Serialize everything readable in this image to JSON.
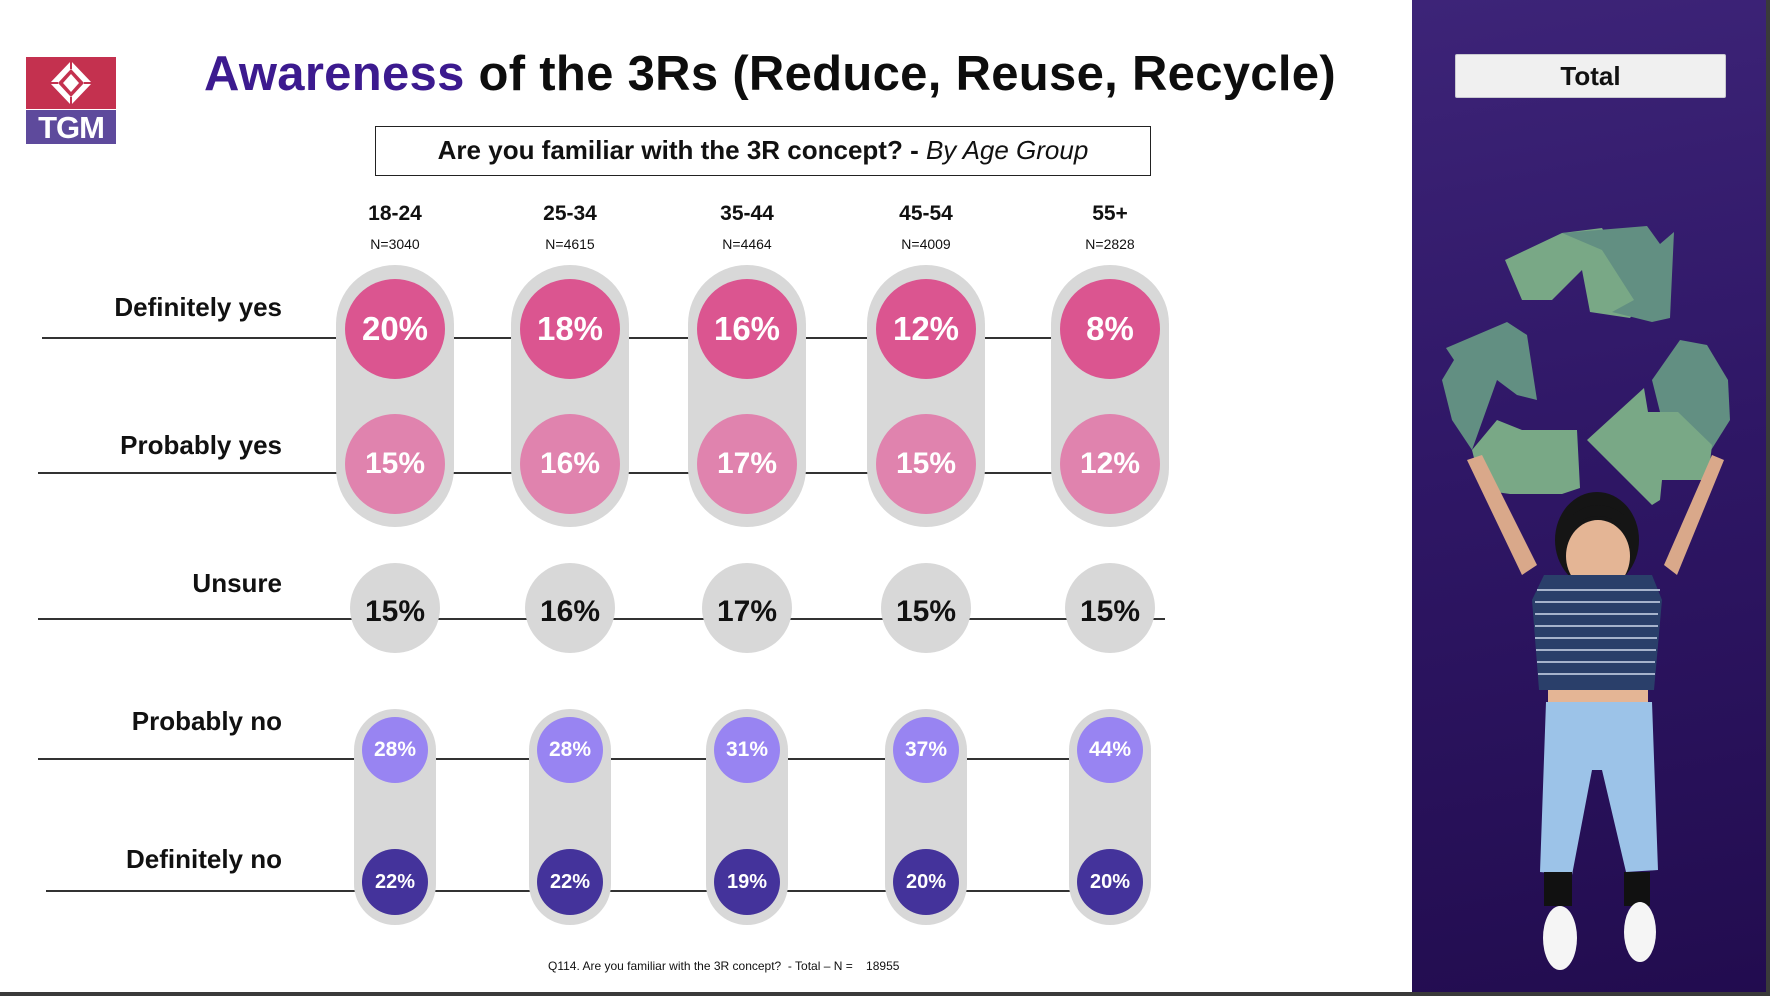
{
  "logo": {
    "text": "TGM",
    "icon": "diamond-logo-icon",
    "colors": {
      "top": "#c4314f",
      "bottom": "#5e4a9c"
    }
  },
  "title": {
    "accent": "Awareness",
    "rest": " of the 3Rs (Reduce, Reuse, Recycle)",
    "accent_color": "#3c1a8f"
  },
  "subtitle": {
    "question": "Are you familiar with the 3R concept? - ",
    "by": "By Age Group"
  },
  "panel": {
    "button_label": "Total",
    "image": "child-holding-recycle-sign-photo"
  },
  "footnote": "Q114. Are you familiar with the 3R concept?  - Total – N =    18955",
  "colors": {
    "definitely_yes": "#db5590",
    "probably_yes": "#e083ae",
    "unsure": "#d8d8d8",
    "probably_no": "#9884f2",
    "definitely_no": "#44339b",
    "pill": "#d8d8d8",
    "panel": "#2f1766"
  },
  "chart_data": {
    "type": "table",
    "title": "Are you familiar with the 3R concept? - By Age Group",
    "categories": [
      "18-24",
      "25-34",
      "35-44",
      "45-54",
      "55+"
    ],
    "sample_sizes": [
      "N=3040",
      "N=4615",
      "N=4464",
      "N=4009",
      "N=2828"
    ],
    "series": [
      {
        "name": "Definitely yes",
        "values": [
          20,
          18,
          16,
          12,
          8
        ]
      },
      {
        "name": "Probably yes",
        "values": [
          15,
          16,
          17,
          15,
          12
        ]
      },
      {
        "name": "Unsure",
        "values": [
          15,
          16,
          17,
          15,
          15
        ]
      },
      {
        "name": "Probably no",
        "values": [
          28,
          28,
          31,
          37,
          44
        ]
      },
      {
        "name": "Definitely no",
        "values": [
          22,
          22,
          19,
          20,
          20
        ]
      }
    ],
    "unit": "%",
    "total_n": 18955
  }
}
